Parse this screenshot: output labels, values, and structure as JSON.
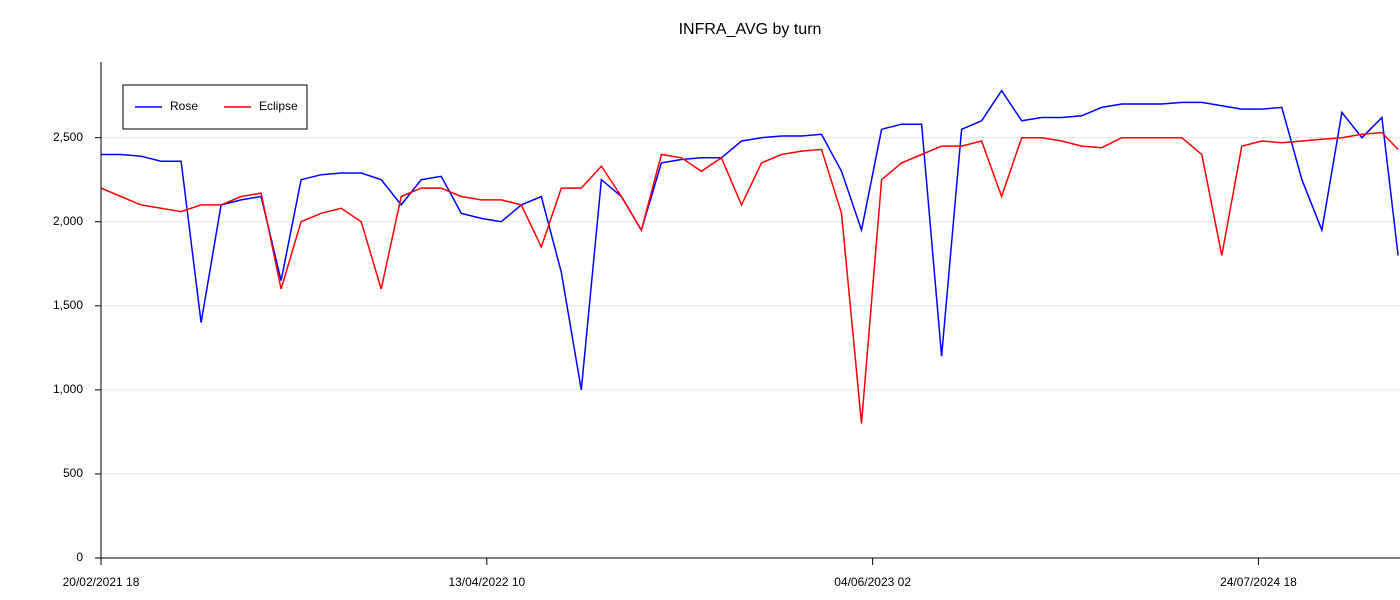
{
  "chart_data": {
    "type": "line",
    "title": "INFRA_AVG by turn",
    "x": [
      0,
      520,
      1040,
      1560,
      2080,
      2600,
      3120,
      3640,
      4160,
      4680,
      5200,
      5720,
      6240,
      6760,
      7280,
      7800,
      8320,
      8840,
      9360,
      9880,
      10400,
      10920,
      11440,
      11960,
      12480,
      13000,
      13520,
      14040,
      14560,
      15080,
      15600,
      16120,
      16640,
      17160,
      17680,
      18200,
      18720,
      19240,
      19760,
      20280,
      20800,
      21320,
      21840,
      22360,
      22880,
      23400,
      23920,
      24440,
      24960,
      25480,
      26000,
      26520,
      27040,
      27560,
      28080,
      28600,
      29120,
      29640,
      30160,
      30680,
      31200,
      31720,
      32240,
      32760,
      33280,
      33700
    ],
    "series": [
      {
        "name": "Rose",
        "color": "#0000ff",
        "values": [
          2400,
          2400,
          2390,
          2360,
          2360,
          1400,
          2100,
          2130,
          2150,
          1650,
          2250,
          2280,
          2290,
          2290,
          2250,
          2100,
          2250,
          2270,
          2050,
          2020,
          2000,
          2100,
          2150,
          1700,
          1000,
          2250,
          2150,
          1950,
          2350,
          2370,
          2380,
          2380,
          2480,
          2500,
          2510,
          2510,
          2520,
          2300,
          1950,
          2550,
          2580,
          2580,
          1200,
          2550,
          2600,
          2780,
          2600,
          2620,
          2620,
          2630,
          2680,
          2700,
          2700,
          2700,
          2710,
          2710,
          2690,
          2670,
          2670,
          2680,
          2250,
          1950,
          2650,
          2500,
          2620,
          1800
        ]
      },
      {
        "name": "Eclipse",
        "color": "#ff0000",
        "values": [
          2200,
          2150,
          2100,
          2080,
          2060,
          2100,
          2100,
          2150,
          2170,
          1600,
          2000,
          2050,
          2080,
          2000,
          1600,
          2150,
          2200,
          2200,
          2150,
          2130,
          2130,
          2100,
          1850,
          2200,
          2200,
          2330,
          2150,
          1950,
          2400,
          2380,
          2300,
          2380,
          2100,
          2350,
          2400,
          2420,
          2430,
          2050,
          800,
          2250,
          2350,
          2400,
          2450,
          2450,
          2480,
          2150,
          2500,
          2500,
          2480,
          2450,
          2440,
          2500,
          2500,
          2500,
          2500,
          2400,
          1800,
          2450,
          2480,
          2470,
          2480,
          2490,
          2500,
          2520,
          2530,
          2430
        ]
      }
    ],
    "xlim": [
      0,
      33750
    ],
    "xticks": [
      {
        "value": 0,
        "label": "20/02/2021 18"
      },
      {
        "value": 10024,
        "label": "13/04/2022 10"
      },
      {
        "value": 20048,
        "label": "04/06/2023 02"
      },
      {
        "value": 30072,
        "label": "24/07/2024 18"
      }
    ],
    "ylim": [
      0,
      2950
    ],
    "yticks": [
      0,
      500,
      {
        "value": 1000,
        "label": "1,000"
      },
      {
        "value": 1500,
        "label": "1,500"
      },
      {
        "value": 2000,
        "label": "2,000"
      },
      {
        "value": 2500,
        "label": "2,500"
      }
    ],
    "grid": true,
    "legend": "top-left"
  }
}
